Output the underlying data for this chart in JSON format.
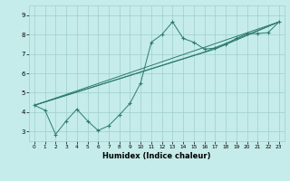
{
  "xlabel": "Humidex (Indice chaleur)",
  "bg_color": "#c5ecea",
  "grid_color": "#9ecfcc",
  "line_color": "#2d7a6e",
  "xlim": [
    -0.5,
    23.5
  ],
  "ylim": [
    2.5,
    9.5
  ],
  "xticks": [
    0,
    1,
    2,
    3,
    4,
    5,
    6,
    7,
    8,
    9,
    10,
    11,
    12,
    13,
    14,
    15,
    16,
    17,
    18,
    19,
    20,
    21,
    22,
    23
  ],
  "yticks": [
    3,
    4,
    5,
    6,
    7,
    8,
    9
  ],
  "line1_x": [
    0,
    1,
    2,
    3,
    4,
    5,
    6,
    7,
    8,
    9,
    10,
    11,
    12,
    13,
    14,
    15,
    16,
    17,
    18,
    19,
    20,
    21,
    22,
    23
  ],
  "line1_y": [
    4.35,
    4.1,
    2.85,
    3.55,
    4.15,
    3.55,
    3.05,
    3.3,
    3.85,
    4.45,
    5.5,
    7.6,
    8.0,
    8.65,
    7.8,
    7.6,
    7.25,
    7.3,
    7.5,
    7.8,
    8.05,
    8.05,
    8.1,
    8.65
  ],
  "line2_x": [
    0,
    23
  ],
  "line2_y": [
    4.35,
    8.65
  ],
  "line3_x": [
    0,
    17,
    23
  ],
  "line3_y": [
    4.35,
    7.25,
    8.65
  ],
  "line4_x": [
    0,
    16,
    23
  ],
  "line4_y": [
    4.35,
    7.1,
    8.65
  ]
}
